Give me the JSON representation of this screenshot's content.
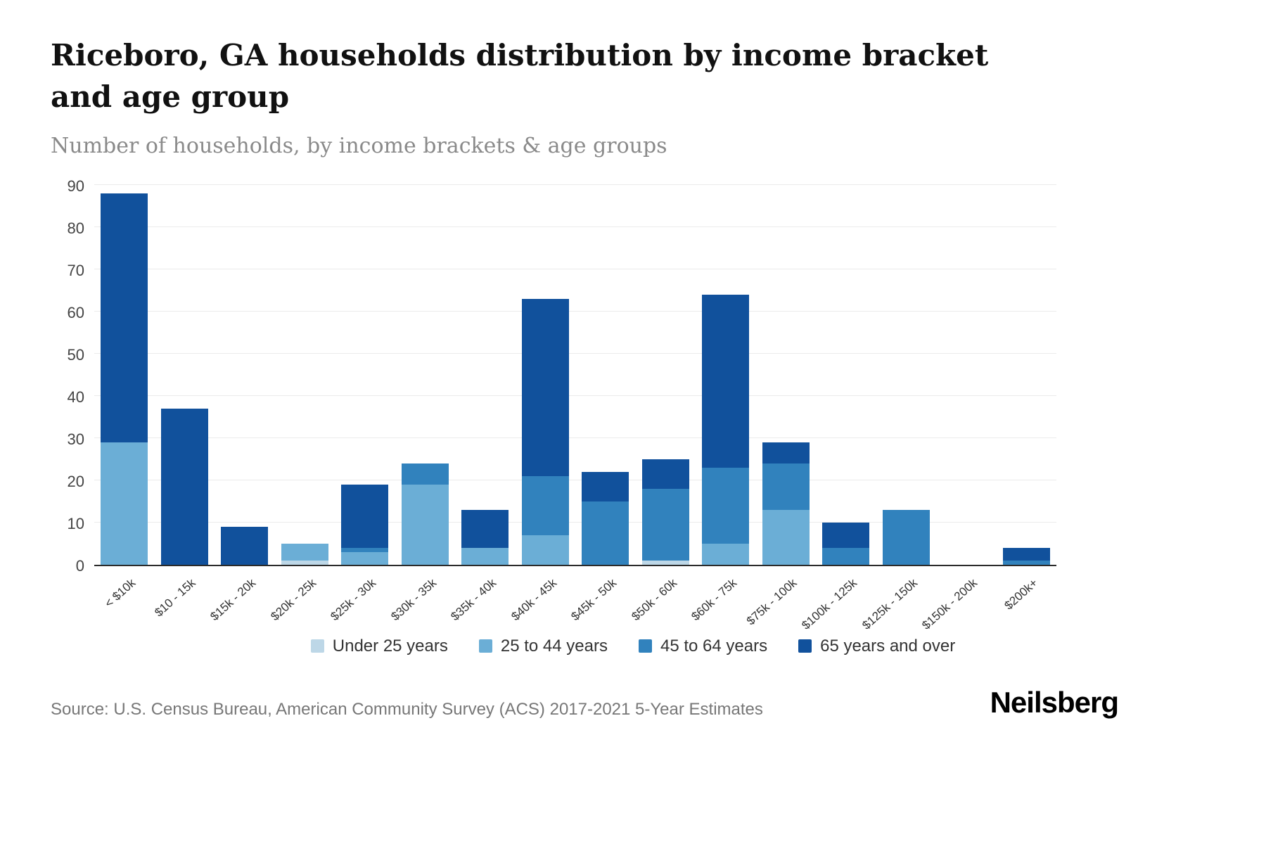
{
  "header": {
    "title": "Riceboro, GA households distribution by income bracket and age group",
    "subtitle": "Number of households, by income brackets & age groups"
  },
  "chart_data": {
    "type": "bar",
    "stacked": true,
    "title": "Riceboro, GA households distribution by income bracket and age group",
    "xlabel": "",
    "ylabel": "Number of households",
    "ylim": [
      0,
      90
    ],
    "ytick_step": 10,
    "grid": true,
    "legend_position": "bottom",
    "categories": [
      "< $10k",
      "$10 - 15k",
      "$15k - 20k",
      "$20k - 25k",
      "$25k - 30k",
      "$30k - 35k",
      "$35k - 40k",
      "$40k - 45k",
      "$45k - 50k",
      "$50k - 60k",
      "$60k - 75k",
      "$75k - 100k",
      "$100k - 125k",
      "$125k - 150k",
      "$150k - 200k",
      "$200k+"
    ],
    "series": [
      {
        "name": "Under 25 years",
        "color": "#bdd7e7",
        "values": [
          0,
          0,
          0,
          1,
          0,
          0,
          0,
          0,
          0,
          1,
          0,
          0,
          0,
          0,
          0,
          0
        ]
      },
      {
        "name": "25 to 44 years",
        "color": "#6baed6",
        "values": [
          29,
          0,
          0,
          4,
          3,
          19,
          4,
          7,
          0,
          0,
          5,
          13,
          0,
          0,
          0,
          0
        ]
      },
      {
        "name": "45 to 64 years",
        "color": "#3182bd",
        "values": [
          0,
          0,
          0,
          0,
          1,
          5,
          0,
          14,
          15,
          17,
          18,
          11,
          4,
          13,
          0,
          1
        ]
      },
      {
        "name": "65 years and over",
        "color": "#11519c",
        "values": [
          59,
          37,
          9,
          0,
          15,
          0,
          9,
          42,
          7,
          7,
          41,
          5,
          6,
          0,
          0,
          3
        ]
      }
    ],
    "totals": [
      88,
      37,
      9,
      5,
      19,
      24,
      13,
      63,
      22,
      25,
      64,
      29,
      10,
      13,
      0,
      4
    ]
  },
  "footer": {
    "source": "Source: U.S. Census Bureau, American Community Survey (ACS) 2017-2021 5-Year Estimates",
    "brand": "Neilsberg"
  }
}
